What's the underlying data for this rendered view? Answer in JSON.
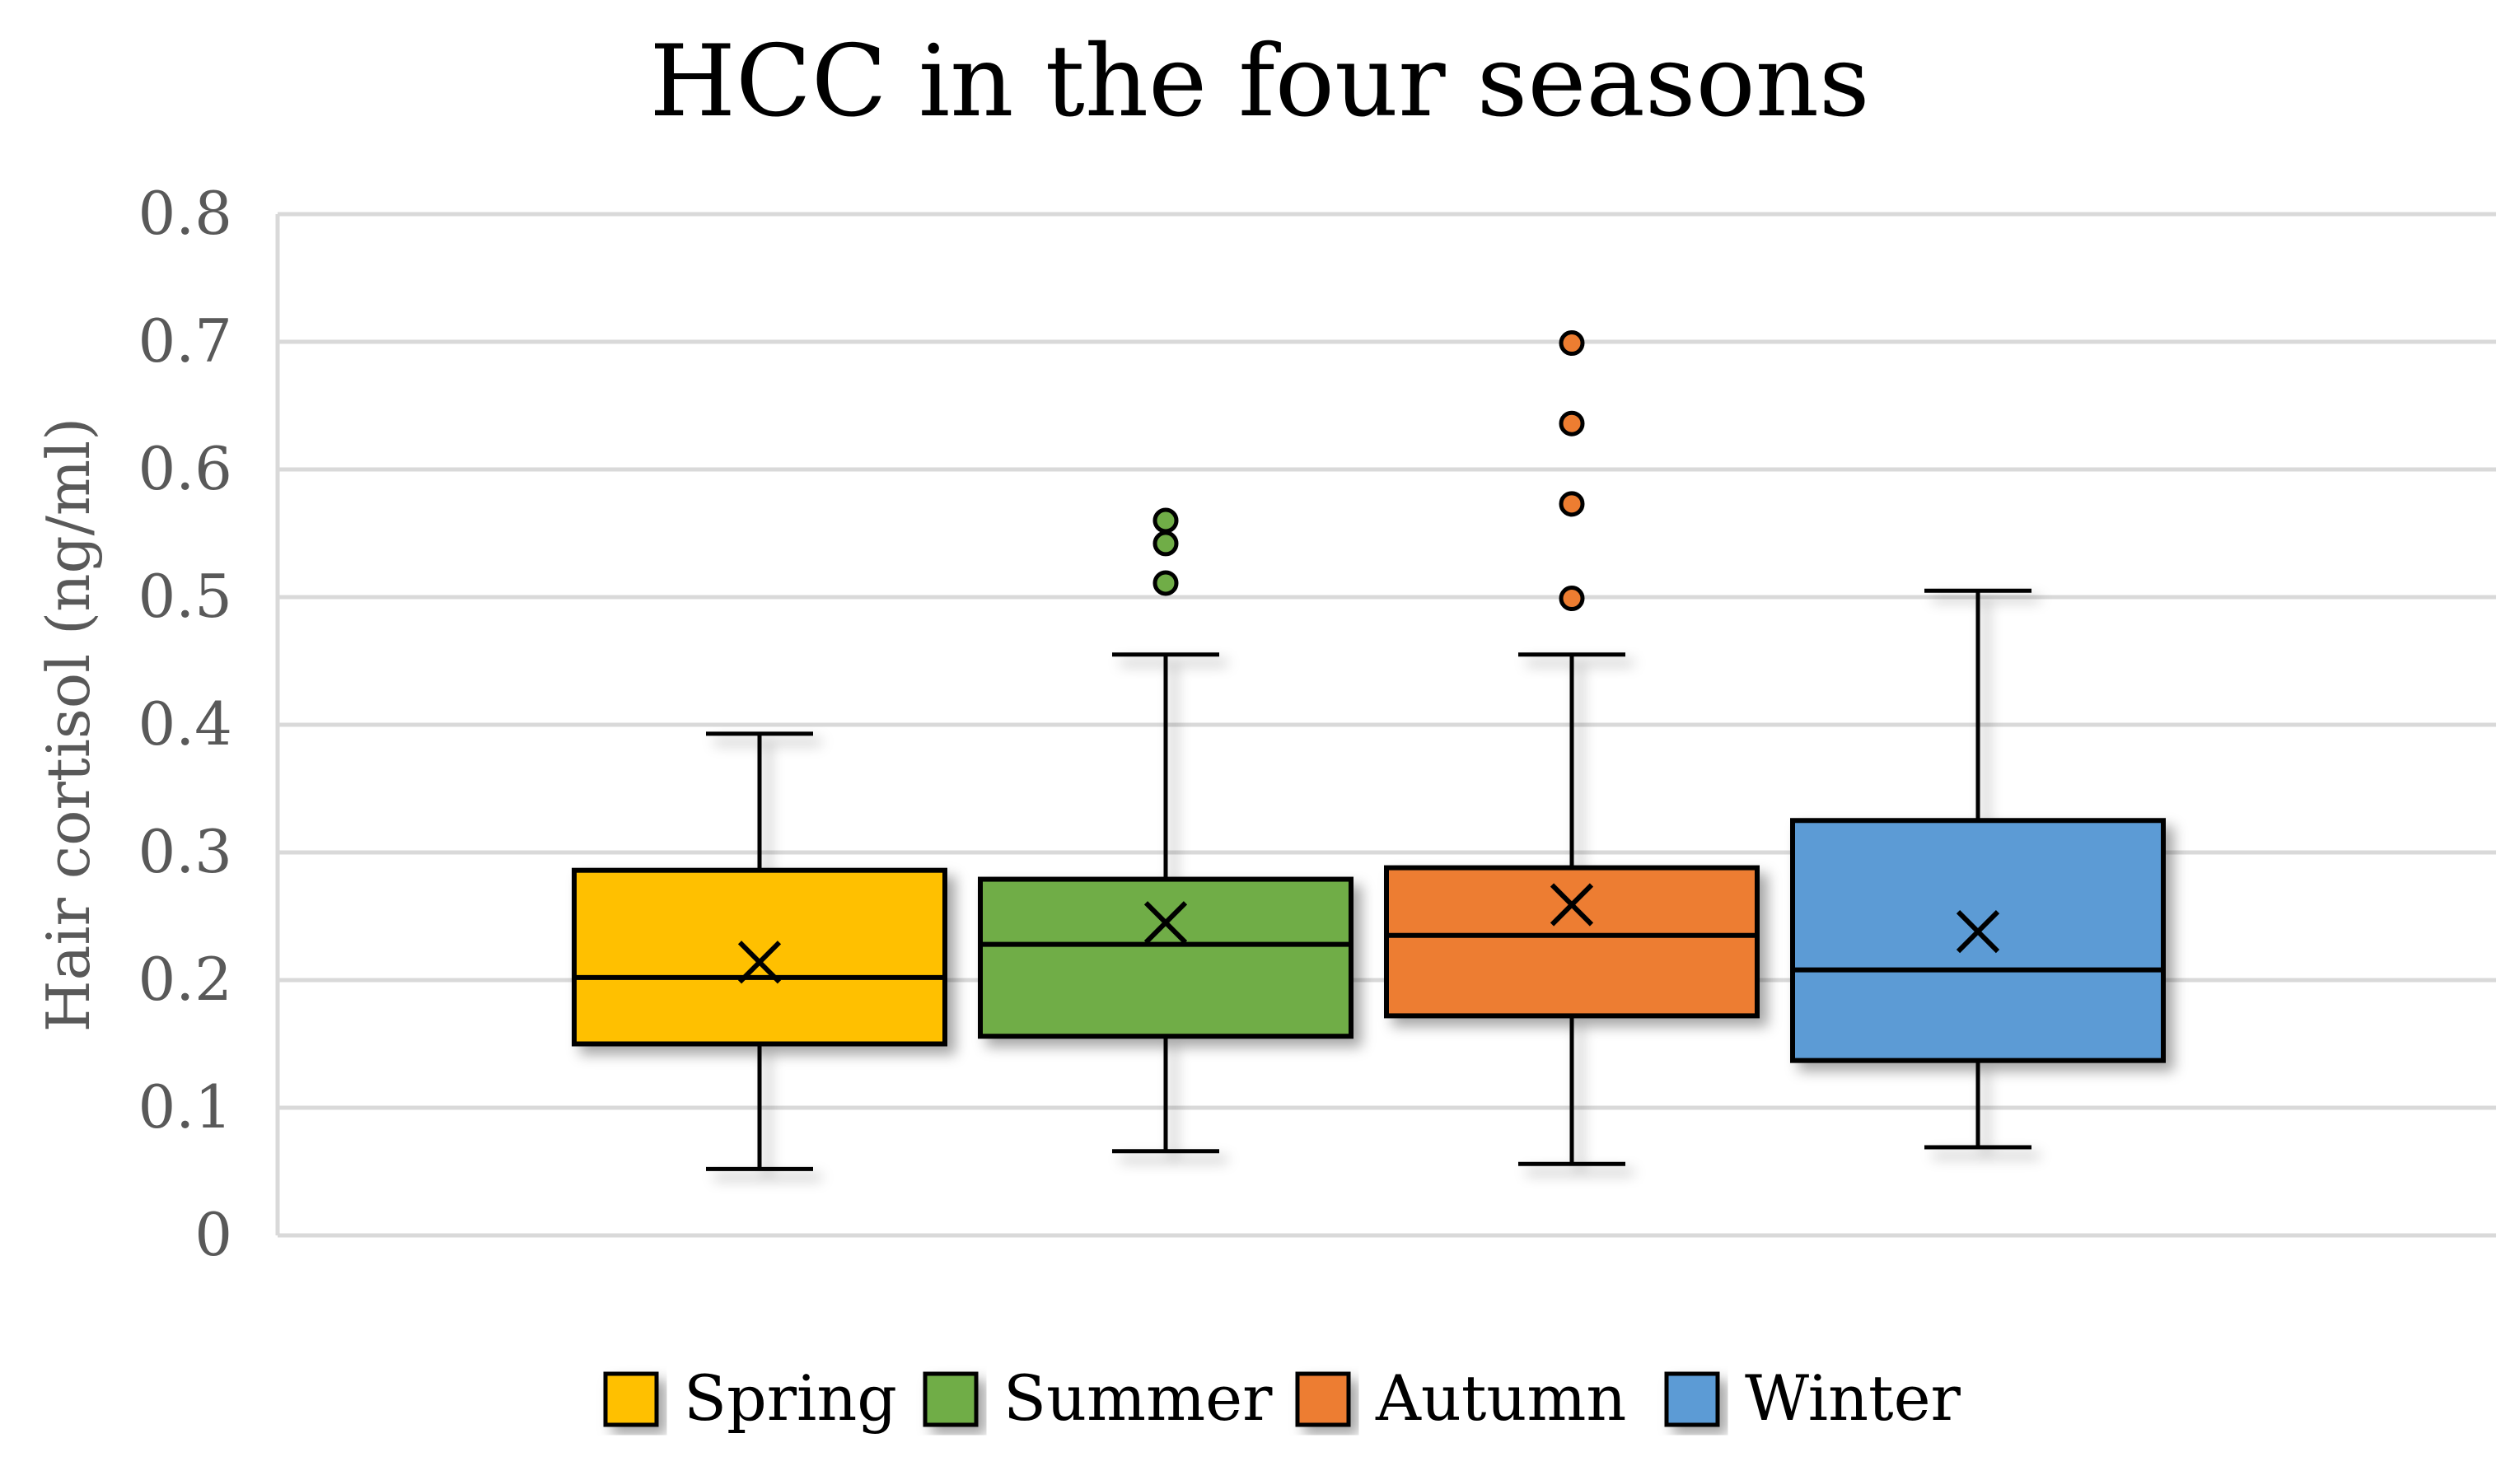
{
  "chart_data": {
    "type": "box",
    "title": "HCC in the four seasons",
    "ylabel": "Hair cortisol (ng/ml)",
    "ylim": [
      0,
      0.8
    ],
    "yticks": [
      "0",
      "0.1",
      "0.2",
      "0.3",
      "0.4",
      "0.5",
      "0.6",
      "0.7",
      "0.8"
    ],
    "grid": true,
    "legend_position": "bottom",
    "series": [
      {
        "name": "Spring",
        "color": "#FFC000",
        "min": 0.052,
        "q1": 0.15,
        "median": 0.202,
        "q3": 0.286,
        "max": 0.393,
        "mean": 0.214,
        "outliers": []
      },
      {
        "name": "Summer",
        "color": "#70AD47",
        "min": 0.066,
        "q1": 0.156,
        "median": 0.228,
        "q3": 0.279,
        "max": 0.455,
        "mean": 0.245,
        "outliers": [
          0.511,
          0.542,
          0.56
        ]
      },
      {
        "name": "Autumn",
        "color": "#ED7D31",
        "min": 0.056,
        "q1": 0.172,
        "median": 0.235,
        "q3": 0.288,
        "max": 0.455,
        "mean": 0.259,
        "outliers": [
          0.499,
          0.573,
          0.636,
          0.699
        ]
      },
      {
        "name": "Winter",
        "color": "#5B9BD5",
        "min": 0.069,
        "q1": 0.137,
        "median": 0.208,
        "q3": 0.325,
        "max": 0.505,
        "mean": 0.238,
        "outliers": []
      }
    ]
  }
}
